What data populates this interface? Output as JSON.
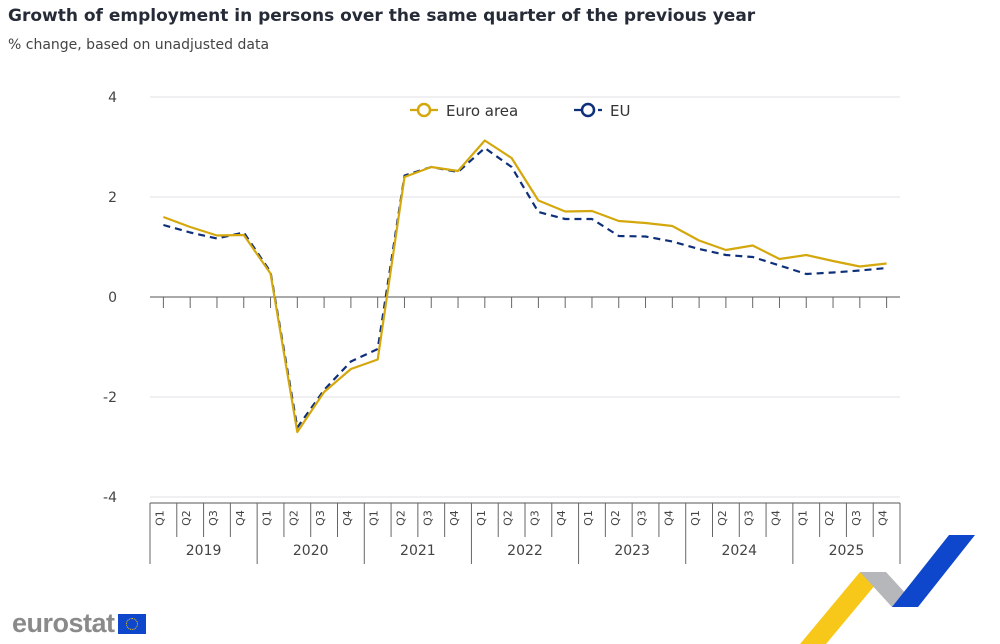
{
  "title": "Growth of employment in persons over the same quarter of the previous year",
  "subtitle": "% change, based on unadjusted data",
  "logo": "eurostat",
  "chart_data": {
    "type": "line",
    "ylim": [
      -4,
      4
    ],
    "yticks": [
      4,
      2,
      0,
      -2,
      -4
    ],
    "grid": true,
    "legend_placement": "top-center",
    "years": [
      "2019",
      "2020",
      "2021",
      "2022",
      "2023",
      "2024",
      "2025"
    ],
    "quarters": [
      "Q1",
      "Q2",
      "Q3",
      "Q4"
    ],
    "series": [
      {
        "name": "Euro area",
        "color": "#d4a80c",
        "dash": false,
        "values": [
          1.6,
          1.4,
          1.23,
          1.24,
          0.47,
          -2.7,
          -1.9,
          -1.44,
          -1.25,
          2.4,
          2.6,
          2.52,
          3.13,
          2.78,
          1.93,
          1.71,
          1.72,
          1.52,
          1.48,
          1.42,
          1.13,
          0.94,
          1.03,
          0.76,
          0.84,
          0.72,
          0.61,
          0.67
        ]
      },
      {
        "name": "EU",
        "color": "#0e2f7a",
        "dash": true,
        "values": [
          1.44,
          1.29,
          1.17,
          1.29,
          0.5,
          -2.61,
          -1.86,
          -1.29,
          -1.04,
          2.43,
          2.6,
          2.5,
          2.98,
          2.6,
          1.7,
          1.56,
          1.56,
          1.22,
          1.21,
          1.11,
          0.96,
          0.84,
          0.8,
          0.63,
          0.46,
          0.49,
          0.53,
          0.58
        ]
      }
    ]
  }
}
